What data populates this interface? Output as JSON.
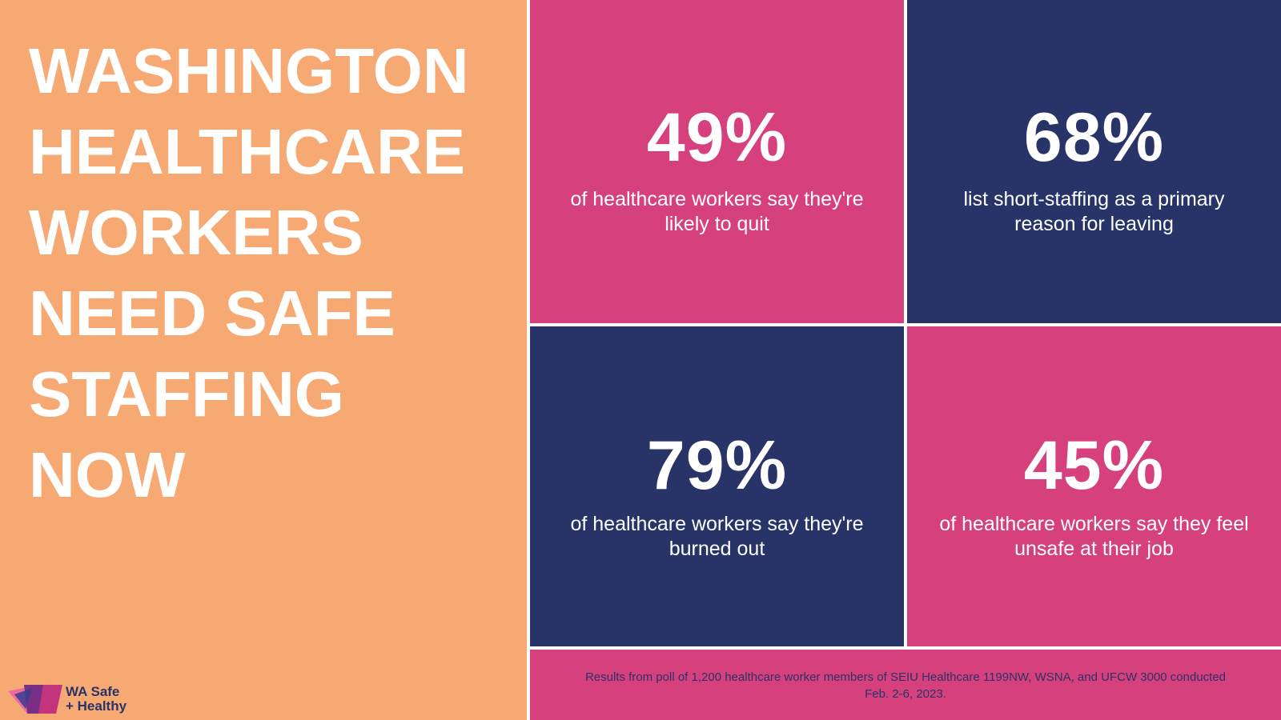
{
  "headline": {
    "lines": [
      "WASHINGTON",
      "HEALTHCARE",
      "WORKERS",
      "NEED SAFE",
      "STAFFING",
      "NOW"
    ]
  },
  "logo": {
    "line1": "WA Safe",
    "line2": "+ Healthy"
  },
  "stats": [
    {
      "value": "49%",
      "description": "of healthcare workers say they're likely to quit",
      "color": "#d6417d"
    },
    {
      "value": "68%",
      "description": "list short-staffing as a primary reason for leaving",
      "color": "#283367"
    },
    {
      "value": "79%",
      "description": "of healthcare workers say they're burned out",
      "color": "#283367"
    },
    {
      "value": "45%",
      "description": "of healthcare workers say they feel unsafe at their job",
      "color": "#d6417d"
    }
  ],
  "footer": {
    "note": "Results from poll of 1,200 healthcare worker members of SEIU Healthcare 1199NW, WSNA, and UFCW 3000 conducted Feb. 2-6, 2023."
  },
  "colors": {
    "background_left": "#f7a973",
    "pink": "#d6417d",
    "navy": "#283367",
    "text_light": "#ffffff"
  }
}
